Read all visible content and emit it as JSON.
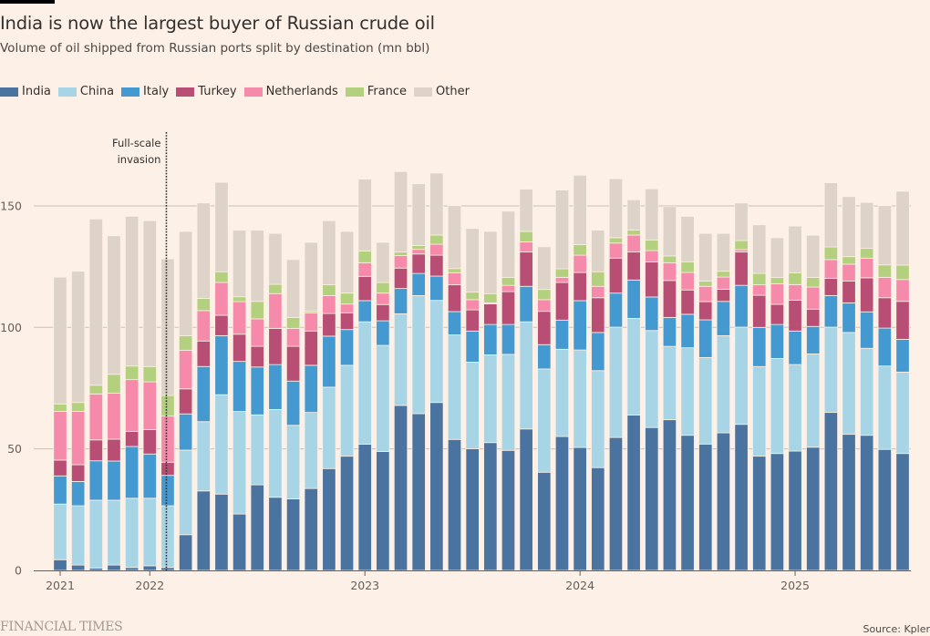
{
  "header": {
    "title": "India is now the largest buyer of Russian crude oil",
    "subtitle": "Volume of oil shipped from Russian ports split by destination (mn bbl)"
  },
  "footer": {
    "brand": "FINANCIAL TIMES",
    "source": "Source: Kpler"
  },
  "chart_data": {
    "type": "bar",
    "stacked": true,
    "title": "India is now the largest buyer of Russian crude oil",
    "subtitle": "Volume of oil shipped from Russian ports split by destination (mn bbl)",
    "xlabel": "",
    "ylabel": "mn bbl",
    "ylim": [
      0,
      175
    ],
    "y_ticks": [
      0,
      50,
      100,
      150
    ],
    "grid": true,
    "legend_position": "top-left",
    "x_ticks": [
      {
        "label": "2021",
        "bar_index": 0
      },
      {
        "label": "2022",
        "bar_index": 5
      },
      {
        "label": "2023",
        "bar_index": 17
      },
      {
        "label": "2024",
        "bar_index": 29
      },
      {
        "label": "2025",
        "bar_index": 41
      }
    ],
    "annotation": {
      "lines": [
        "Full-scale",
        "invasion"
      ],
      "between_bar_index": [
        6,
        6.5
      ],
      "style": "dotted-vertical-line"
    },
    "series": [
      {
        "name": "India",
        "color": "#4a73a0",
        "values": [
          4.4,
          2.2,
          1.0,
          2.2,
          1.2,
          1.9,
          1.2,
          14.7,
          32.7,
          31.4,
          23.2,
          35.2,
          30.1,
          29.4,
          33.7,
          41.9,
          47.0,
          51.9,
          48.9,
          67.9,
          64.5,
          69.1,
          53.9,
          50.1,
          52.6,
          49.4,
          58.2,
          40.4,
          55.1,
          50.6,
          42.3,
          54.7,
          63.9,
          58.8,
          62.0,
          55.6,
          52.0,
          56.6,
          60.1,
          47.0,
          48.1,
          49.1,
          50.7,
          65.0,
          56.0,
          55.6,
          49.8,
          48.1
        ]
      },
      {
        "name": "China",
        "color": "#a7d5e6",
        "values": [
          22.9,
          24.4,
          27.9,
          26.7,
          28.5,
          27.8,
          25.4,
          34.8,
          28.5,
          40.9,
          42.2,
          28.8,
          36.1,
          30.3,
          31.3,
          33.5,
          37.4,
          50.4,
          43.7,
          37.7,
          48.6,
          42.0,
          43.0,
          35.6,
          36.1,
          39.5,
          44.1,
          42.5,
          35.9,
          40.1,
          39.9,
          45.4,
          39.8,
          39.9,
          30.2,
          36.0,
          35.6,
          40.0,
          40.0,
          36.9,
          39.1,
          35.6,
          38.4,
          35.1,
          41.9,
          35.8,
          34.3,
          33.5
        ]
      },
      {
        "name": "Italy",
        "color": "#4399d0",
        "values": [
          11.6,
          10.0,
          16.2,
          16.1,
          21.3,
          18.2,
          12.5,
          14.9,
          22.7,
          24.3,
          20.6,
          19.7,
          18.5,
          18.2,
          19.4,
          21.0,
          14.7,
          8.7,
          10.1,
          10.4,
          9.1,
          10.0,
          9.6,
          12.8,
          12.5,
          12.3,
          14.6,
          10.0,
          12.0,
          20.3,
          15.7,
          14.0,
          15.8,
          13.8,
          11.9,
          13.8,
          15.5,
          14.1,
          17.2,
          16.1,
          14.0,
          13.8,
          11.3,
          13.0,
          12.2,
          15.0,
          15.6,
          13.5
        ]
      },
      {
        "name": "Turkey",
        "color": "#b84e74",
        "values": [
          6.5,
          6.9,
          8.6,
          9.0,
          6.2,
          10.0,
          5.4,
          10.3,
          10.5,
          8.4,
          11.2,
          8.5,
          14.9,
          14.3,
          14.1,
          9.3,
          6.9,
          10.0,
          6.7,
          8.4,
          8.0,
          8.6,
          11.0,
          8.7,
          8.5,
          13.5,
          14.1,
          13.7,
          15.5,
          11.6,
          14.3,
          14.4,
          11.5,
          14.4,
          15.2,
          10.0,
          7.5,
          5.0,
          13.7,
          13.2,
          8.3,
          12.7,
          7.1,
          7.1,
          9.0,
          14.0,
          12.5,
          15.6
        ]
      },
      {
        "name": "Netherlands",
        "color": "#f68aaa",
        "values": [
          20.0,
          21.9,
          18.9,
          18.9,
          21.3,
          19.7,
          19.0,
          15.9,
          12.5,
          13.5,
          13.4,
          11.3,
          14.3,
          7.4,
          7.5,
          7.4,
          3.6,
          5.6,
          4.7,
          5.1,
          1.9,
          4.5,
          5.0,
          4.2,
          0.4,
          2.6,
          4.2,
          4.8,
          2.1,
          7.1,
          4.7,
          6.2,
          7.0,
          4.7,
          7.3,
          7.2,
          6.3,
          5.0,
          1.0,
          4.3,
          8.4,
          6.4,
          9.1,
          7.7,
          6.9,
          8.1,
          8.4,
          9.0
        ]
      },
      {
        "name": "France",
        "color": "#b3d07e",
        "values": [
          3.1,
          3.7,
          3.6,
          7.8,
          5.6,
          6.3,
          8.5,
          6.0,
          5.0,
          4.4,
          2.0,
          7.2,
          3.8,
          4.5,
          0.6,
          4.5,
          4.5,
          4.8,
          4.4,
          1.5,
          1.6,
          3.8,
          1.7,
          3.1,
          3.8,
          3.3,
          4.3,
          4.2,
          3.5,
          4.4,
          6.0,
          2.2,
          2.1,
          4.4,
          2.8,
          4.4,
          2.2,
          2.4,
          3.7,
          4.7,
          2.6,
          4.9,
          4.0,
          5.2,
          3.1,
          4.0,
          5.1,
          5.9
        ]
      },
      {
        "name": "Other",
        "color": "#ddd3c8",
        "values": [
          52.2,
          54.0,
          68.4,
          57.0,
          61.6,
          60.0,
          56.2,
          42.9,
          39.3,
          36.8,
          27.4,
          29.3,
          21.0,
          23.8,
          28.4,
          26.3,
          25.4,
          29.6,
          16.5,
          33.1,
          25.4,
          25.5,
          25.9,
          26.2,
          25.6,
          27.2,
          17.4,
          17.6,
          32.4,
          28.5,
          17.1,
          24.3,
          12.4,
          21.0,
          20.3,
          18.7,
          19.6,
          15.6,
          15.5,
          20.0,
          16.4,
          19.2,
          17.3,
          26.4,
          24.7,
          18.9,
          24.4,
          30.4
        ]
      }
    ]
  }
}
